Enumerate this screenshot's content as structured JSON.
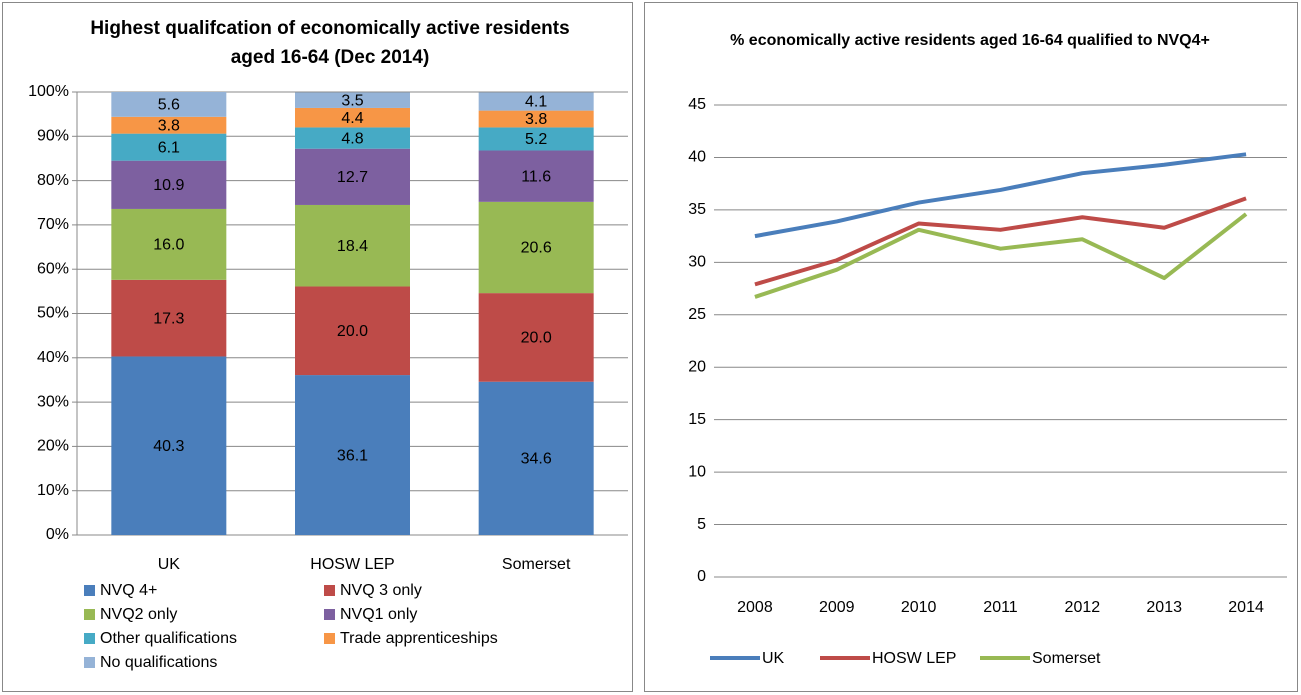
{
  "chart_data": [
    {
      "type": "bar",
      "stacked": true,
      "title": "Highest qualifcation of economically active residents aged 16-64 (Dec 2014)",
      "categories": [
        "UK",
        "HOSW LEP",
        "Somerset"
      ],
      "series": [
        {
          "name": "NVQ 4+",
          "color": "#4a7ebb",
          "values": [
            40.3,
            36.1,
            34.6
          ]
        },
        {
          "name": "NVQ 3 only",
          "color": "#be4b48",
          "values": [
            17.3,
            20,
            20
          ],
          "value_labels": [
            "17.3",
            "20.0",
            "20.0"
          ]
        },
        {
          "name": "NVQ2 only",
          "color": "#98b954",
          "values": [
            16,
            18.4,
            20.6
          ],
          "value_labels": [
            "16.0",
            "18.4",
            "20.6"
          ]
        },
        {
          "name": "NVQ1 only",
          "color": "#7d60a0",
          "values": [
            10.9,
            12.7,
            11.6
          ]
        },
        {
          "name": "Other qualifications",
          "color": "#46aac5",
          "values": [
            6.1,
            4.8,
            5.2
          ]
        },
        {
          "name": "Trade apprenticeships",
          "color": "#f79646",
          "values": [
            3.8,
            4.4,
            3.8
          ]
        },
        {
          "name": "No qualifications",
          "color": "#95b3d7",
          "values": [
            5.6,
            3.5,
            4.1
          ]
        }
      ],
      "ylim": [
        0,
        100
      ],
      "yticks": [
        {
          "value": 0,
          "label": "0%"
        },
        {
          "value": 10,
          "label": "10%"
        },
        {
          "value": 20,
          "label": "20%"
        },
        {
          "value": 30,
          "label": "30%"
        },
        {
          "value": 40,
          "label": "40%"
        },
        {
          "value": 50,
          "label": "50%"
        },
        {
          "value": 60,
          "label": "60%"
        },
        {
          "value": 70,
          "label": "70%"
        },
        {
          "value": 80,
          "label": "80%"
        },
        {
          "value": 90,
          "label": "90%"
        },
        {
          "value": 100,
          "label": "100%"
        }
      ],
      "grid": true,
      "legend": "bottom"
    },
    {
      "type": "line",
      "title": "% economically active residents aged 16-64 qualified to NVQ4+",
      "categories": [
        "2008",
        "2009",
        "2010",
        "2011",
        "2012",
        "2013",
        "2014"
      ],
      "series": [
        {
          "name": "UK",
          "color": "#4a7ebb",
          "values": [
            32.5,
            33.9,
            35.7,
            36.9,
            38.5,
            39.3,
            40.3
          ]
        },
        {
          "name": "HOSW LEP",
          "color": "#be4b48",
          "values": [
            27.9,
            30.2,
            33.7,
            33.1,
            34.3,
            33.3,
            36.1
          ]
        },
        {
          "name": "Somerset",
          "color": "#98b954",
          "values": [
            26.7,
            29.3,
            33.1,
            31.3,
            32.2,
            28.5,
            34.6
          ]
        }
      ],
      "ylim": [
        0,
        45
      ],
      "yticks": [
        0,
        5,
        10,
        15,
        20,
        25,
        30,
        35,
        40,
        45
      ],
      "grid": true,
      "legend": "bottom"
    }
  ]
}
